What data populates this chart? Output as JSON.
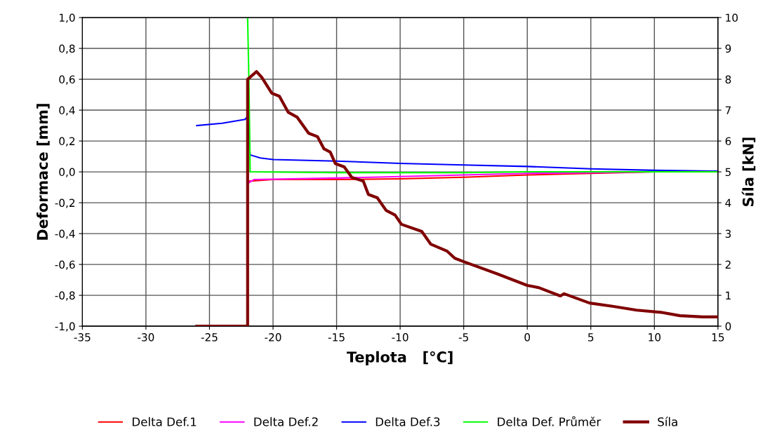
{
  "chart_data": {
    "type": "line",
    "xlabel": "Teplota   [°C]",
    "ylabel": "Deformace [mm]",
    "y2label": "Síla [kN]",
    "xlim": [
      -35,
      15
    ],
    "xticks": [
      -35,
      -30,
      -25,
      -20,
      -15,
      -10,
      -5,
      0,
      5,
      10,
      15
    ],
    "ylim": [
      -1.0,
      1.0
    ],
    "yticks": [
      {
        "value": -1.0,
        "label": "-1,0"
      },
      {
        "value": -0.8,
        "label": "-0,8"
      },
      {
        "value": -0.6,
        "label": "-0,6"
      },
      {
        "value": -0.4,
        "label": "-0,4"
      },
      {
        "value": -0.2,
        "label": "-0,2"
      },
      {
        "value": 0.0,
        "label": "0,0"
      },
      {
        "value": 0.2,
        "label": "0,2"
      },
      {
        "value": 0.4,
        "label": "0,4"
      },
      {
        "value": 0.6,
        "label": "0,6"
      },
      {
        "value": 0.8,
        "label": "0,8"
      },
      {
        "value": 1.0,
        "label": "1,0"
      }
    ],
    "y2lim": [
      0,
      10
    ],
    "y2ticks": [
      0,
      1,
      2,
      3,
      4,
      5,
      6,
      7,
      8,
      9,
      10
    ],
    "grid": true,
    "legend": "bottom",
    "marker": "none",
    "line_style": "solid",
    "series": [
      {
        "name": "Delta Def.1",
        "color": "#ff0000",
        "x": [
          -21.9,
          -20,
          -15,
          -10,
          -5,
          0,
          5,
          10,
          15
        ],
        "values": [
          -0.06,
          -0.05,
          -0.05,
          -0.045,
          -0.035,
          -0.02,
          -0.01,
          0.0,
          0.0
        ]
      },
      {
        "name": "Delta Def.2",
        "color": "#ff00ff",
        "x": [
          -21.9,
          -21.5,
          -15,
          -10,
          -5,
          0,
          5,
          10,
          15
        ],
        "values": [
          -0.07,
          -0.05,
          -0.04,
          -0.03,
          -0.02,
          -0.01,
          -0.005,
          0.0,
          0.0
        ]
      },
      {
        "name": "Delta Def.3",
        "color": "#0000ff",
        "x": [
          -26,
          -24,
          -22.2,
          -22,
          -21.8,
          -21,
          -20,
          -15,
          -10,
          -5,
          0,
          5,
          10,
          15
        ],
        "values": [
          0.3,
          0.315,
          0.34,
          0.36,
          0.11,
          0.09,
          0.08,
          0.07,
          0.055,
          0.045,
          0.035,
          0.02,
          0.01,
          0.005
        ]
      },
      {
        "name": "Delta Def. Průměr",
        "color": "#00ff00",
        "x": [
          -22,
          -21.9,
          -21.8,
          -15,
          -5,
          0,
          5,
          15
        ],
        "values": [
          1.0,
          0.6,
          0.0,
          -0.005,
          -0.005,
          0.0,
          0.0,
          0.0
        ]
      },
      {
        "name": "Síla",
        "color": "#800000",
        "axis": "y2",
        "x": [
          -26,
          -22,
          -22,
          -21.3,
          -20.9,
          -20.1,
          -19.5,
          -18.8,
          -18.1,
          -17.2,
          -16.5,
          -16.0,
          -15.5,
          -15.1,
          -14.4,
          -13.8,
          -12.9,
          -12.5,
          -11.8,
          -11.1,
          -10.4,
          -9.9,
          -8.3,
          -7.6,
          -6.3,
          -5.7,
          -5.0,
          -2.4,
          0.0,
          0.9,
          2.6,
          2.9,
          4.9,
          6.8,
          8.6,
          10.5,
          12.0,
          13.8,
          14.9
        ],
        "values": [
          0,
          0,
          8.0,
          8.25,
          8.07,
          7.55,
          7.45,
          6.93,
          6.77,
          6.25,
          6.14,
          5.75,
          5.64,
          5.27,
          5.16,
          4.82,
          4.7,
          4.27,
          4.16,
          3.75,
          3.6,
          3.3,
          3.07,
          2.66,
          2.43,
          2.2,
          2.09,
          1.7,
          1.32,
          1.25,
          0.98,
          1.05,
          0.75,
          0.64,
          0.52,
          0.45,
          0.34,
          0.3,
          0.3
        ]
      }
    ]
  }
}
